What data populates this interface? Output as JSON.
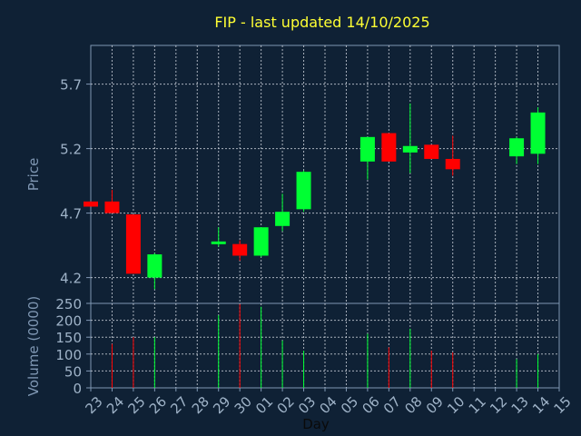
{
  "chart_data": {
    "type": "candlestick",
    "title": "FIP - last updated 14/10/2025",
    "xlabel": "Day",
    "colors": {
      "background": "#0f2135",
      "axis": "#7f97b3",
      "grid": "#cfd6de",
      "title": "#ffff33",
      "label": "#7f97b3",
      "tick_label": "#9fb3c8",
      "up": "#00ff33",
      "down": "#ff0000"
    },
    "x_ticks": [
      "23",
      "24",
      "25",
      "26",
      "27",
      "28",
      "29",
      "30",
      "01",
      "02",
      "03",
      "04",
      "05",
      "06",
      "07",
      "08",
      "09",
      "10",
      "11",
      "12",
      "13",
      "14",
      "15"
    ],
    "price": {
      "ylabel": "Price",
      "ylim": [
        4.0,
        6.0
      ],
      "yticks": [
        4.2,
        4.7,
        5.2,
        5.7
      ],
      "ytick_labels": [
        "4.2",
        "4.7",
        "5.2",
        "5.7"
      ]
    },
    "volume": {
      "ylabel": "Volume (0000)",
      "ylim": [
        0,
        250
      ],
      "yticks": [
        0,
        50,
        100,
        150,
        200,
        250
      ],
      "ytick_labels": [
        "0",
        "50",
        "100",
        "150",
        "200",
        "250"
      ]
    },
    "candles": [
      {
        "x": "23",
        "open": 4.79,
        "high": 4.79,
        "low": 4.75,
        "close": 4.75,
        "volume": 0
      },
      {
        "x": "24",
        "open": 4.79,
        "high": 4.88,
        "low": 4.7,
        "close": 4.7,
        "volume": 130
      },
      {
        "x": "25",
        "open": 4.69,
        "high": 4.69,
        "low": 4.23,
        "close": 4.23,
        "volume": 150
      },
      {
        "x": "26",
        "open": 4.2,
        "high": 4.39,
        "low": 4.11,
        "close": 4.38,
        "volume": 150
      },
      {
        "x": "29",
        "open": 4.47,
        "high": 4.59,
        "low": 4.44,
        "close": 4.48,
        "volume": 215
      },
      {
        "x": "30",
        "open": 4.46,
        "high": 4.49,
        "low": 4.33,
        "close": 4.37,
        "volume": 248
      },
      {
        "x": "01",
        "open": 4.37,
        "high": 4.59,
        "low": 4.36,
        "close": 4.59,
        "volume": 240
      },
      {
        "x": "02",
        "open": 4.6,
        "high": 4.85,
        "low": 4.56,
        "close": 4.71,
        "volume": 140
      },
      {
        "x": "03",
        "open": 4.73,
        "high": 5.03,
        "low": 4.71,
        "close": 5.02,
        "volume": 110
      },
      {
        "x": "06",
        "open": 5.1,
        "high": 5.29,
        "low": 4.96,
        "close": 5.29,
        "volume": 160
      },
      {
        "x": "07",
        "open": 5.32,
        "high": 5.32,
        "low": 5.1,
        "close": 5.1,
        "volume": 120
      },
      {
        "x": "08",
        "open": 5.17,
        "high": 5.55,
        "low": 5.01,
        "close": 5.22,
        "volume": 175
      },
      {
        "x": "09",
        "open": 5.23,
        "high": 5.23,
        "low": 5.12,
        "close": 5.12,
        "volume": 110
      },
      {
        "x": "10",
        "open": 5.12,
        "high": 5.3,
        "low": 4.99,
        "close": 5.04,
        "volume": 105
      },
      {
        "x": "13",
        "open": 5.14,
        "high": 5.29,
        "low": 5.08,
        "close": 5.28,
        "volume": 85
      },
      {
        "x": "14",
        "open": 5.16,
        "high": 5.52,
        "low": 5.08,
        "close": 5.48,
        "volume": 100
      }
    ]
  }
}
